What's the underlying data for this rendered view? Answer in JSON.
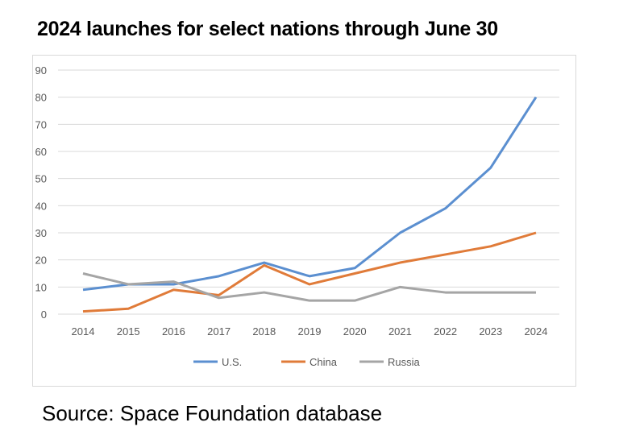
{
  "chart_data": {
    "type": "line",
    "title": "2024 launches for select nations through June 30",
    "source": "Source: Space Foundation database",
    "x": [
      2014,
      2015,
      2016,
      2017,
      2018,
      2019,
      2020,
      2021,
      2022,
      2023,
      2024
    ],
    "series": [
      {
        "name": "U.S.",
        "color": "#5b8fd0",
        "values": [
          9,
          11,
          11,
          14,
          19,
          14,
          17,
          30,
          39,
          54,
          80
        ]
      },
      {
        "name": "China",
        "color": "#e07b39",
        "values": [
          1,
          2,
          9,
          7,
          18,
          11,
          15,
          19,
          22,
          25,
          30
        ]
      },
      {
        "name": "Russia",
        "color": "#a5a5a5",
        "values": [
          15,
          11,
          12,
          6,
          8,
          5,
          5,
          10,
          8,
          8,
          8
        ]
      }
    ],
    "ylim": [
      0,
      90
    ],
    "yticks": [
      0,
      10,
      20,
      30,
      40,
      50,
      60,
      70,
      80,
      90
    ],
    "grid": true,
    "legend": "bottom"
  }
}
